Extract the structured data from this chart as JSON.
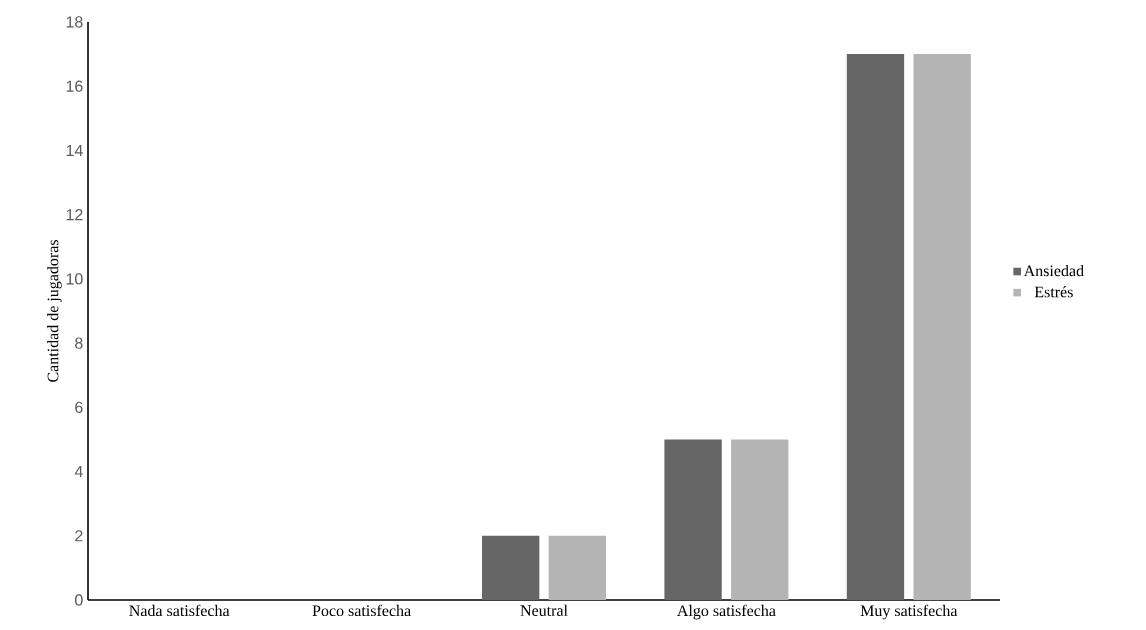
{
  "chart_data": {
    "type": "bar",
    "ylabel": "Cantidad de jugadoras",
    "categories": [
      "Nada satisfecha",
      "Poco satisfecha",
      "Neutral",
      "Algo satisfecha",
      "Muy satisfecha"
    ],
    "series": [
      {
        "name": "Ansiedad",
        "color": "#666666",
        "values": [
          0,
          0,
          2,
          5,
          17
        ]
      },
      {
        "name": "Estrés",
        "color": "#b4b4b4",
        "values": [
          0,
          0,
          2,
          5,
          17
        ]
      }
    ],
    "ylim": [
      0,
      18
    ],
    "yticks": [
      0,
      2,
      4,
      6,
      8,
      10,
      12,
      14,
      16,
      18
    ],
    "grid": false,
    "legend": "right"
  }
}
